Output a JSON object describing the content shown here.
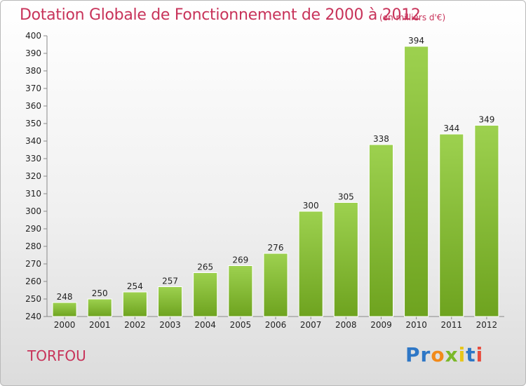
{
  "title": "Dotation Globale de Fonctionnement de 2000 à 2012",
  "subtitle": "(en milliers d'€)",
  "commune": "TORFOU",
  "logo": {
    "letters": [
      "P",
      "r",
      "o",
      "x",
      "i",
      "t",
      "i"
    ],
    "colors": [
      "#2e77c6",
      "#2e77c6",
      "#f28a1a",
      "#7bb829",
      "#e8c61a",
      "#2e77c6",
      "#e84c3d"
    ]
  },
  "colors": {
    "bar_top": "#9dd14f",
    "bar_bottom": "#6ea31f",
    "title": "#c8335a"
  },
  "chart_data": {
    "type": "bar",
    "categories": [
      "2000",
      "2001",
      "2002",
      "2003",
      "2004",
      "2005",
      "2006",
      "2007",
      "2008",
      "2009",
      "2010",
      "2011",
      "2012"
    ],
    "values": [
      248,
      250,
      254,
      257,
      265,
      269,
      276,
      300,
      305,
      338,
      394,
      344,
      349
    ],
    "title": "Dotation Globale de Fonctionnement de 2000 à 2012",
    "subtitle": "(en milliers d'€)",
    "ylim": [
      240,
      400
    ],
    "yticks": [
      240,
      250,
      260,
      270,
      280,
      290,
      300,
      310,
      320,
      330,
      340,
      350,
      360,
      370,
      380,
      390,
      400
    ],
    "grid": false,
    "legend": "none"
  }
}
